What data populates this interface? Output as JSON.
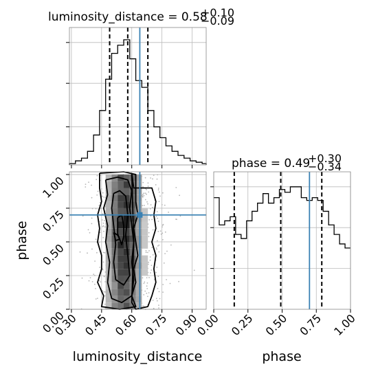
{
  "chart_data": {
    "type": "corner",
    "parameters": [
      "luminosity_distance",
      "phase"
    ],
    "truth": {
      "luminosity_distance": 0.64,
      "phase": 0.7
    },
    "panels": [
      {
        "name": "luminosity_distance-marginal",
        "type": "histogram",
        "title_main": "luminosity_distance = 0.58",
        "title_plus": "+0.10",
        "title_minus": "−0.09",
        "xlim": [
          0.29,
          0.97
        ],
        "ylim": [
          0,
          1
        ],
        "grid": true,
        "bins": [
          0.29,
          0.32,
          0.35,
          0.38,
          0.41,
          0.44,
          0.47,
          0.5,
          0.53,
          0.56,
          0.59,
          0.62,
          0.65,
          0.68,
          0.71,
          0.74,
          0.77,
          0.8,
          0.83,
          0.86,
          0.89,
          0.92,
          0.95,
          0.97
        ],
        "counts": [
          0.01,
          0.03,
          0.05,
          0.1,
          0.22,
          0.4,
          0.63,
          0.82,
          0.88,
          0.92,
          0.78,
          0.62,
          0.57,
          0.4,
          0.28,
          0.2,
          0.14,
          0.1,
          0.07,
          0.05,
          0.03,
          0.02,
          0.01
        ],
        "quantiles": [
          0.49,
          0.58,
          0.68
        ]
      },
      {
        "name": "luminosity_distance-phase-2d",
        "type": "2d-histogram",
        "xlim": [
          0.29,
          0.97
        ],
        "ylim": [
          0.0,
          1.02
        ],
        "grid": true,
        "contours": [
          {
            "x": [
              0.44,
              0.44,
              0.45,
              0.43,
              0.44,
              0.43,
              0.45,
              0.45,
              0.43,
              0.46,
              0.45,
              0.54,
              0.62,
              0.6,
              0.62,
              0.61,
              0.63,
              0.62,
              0.61,
              0.63,
              0.62,
              0.62,
              0.56,
              0.44
            ],
            "y": [
              1.01,
              0.9,
              0.8,
              0.7,
              0.6,
              0.5,
              0.4,
              0.3,
              0.2,
              0.1,
              0.02,
              0.0,
              0.02,
              0.1,
              0.2,
              0.3,
              0.4,
              0.5,
              0.6,
              0.7,
              0.8,
              1.0,
              1.02,
              1.01
            ]
          },
          {
            "x": [
              0.47,
              0.48,
              0.46,
              0.48,
              0.47,
              0.49,
              0.48,
              0.5,
              0.55,
              0.6,
              0.61,
              0.6,
              0.61,
              0.6,
              0.59,
              0.6,
              0.58,
              0.53,
              0.47
            ],
            "y": [
              0.96,
              0.85,
              0.75,
              0.62,
              0.5,
              0.35,
              0.2,
              0.08,
              0.05,
              0.1,
              0.22,
              0.35,
              0.5,
              0.62,
              0.75,
              0.88,
              0.96,
              0.98,
              0.96
            ]
          },
          {
            "x": [
              0.51,
              0.5,
              0.51,
              0.52,
              0.51,
              0.52,
              0.56,
              0.59,
              0.58,
              0.57,
              0.58,
              0.57,
              0.54,
              0.51
            ],
            "y": [
              0.86,
              0.75,
              0.62,
              0.48,
              0.35,
              0.22,
              0.18,
              0.25,
              0.4,
              0.55,
              0.7,
              0.84,
              0.88,
              0.86
            ]
          },
          {
            "x": [
              0.53,
              0.53,
              0.55,
              0.56,
              0.56,
              0.55,
              0.53
            ],
            "y": [
              0.68,
              0.56,
              0.48,
              0.54,
              0.62,
              0.7,
              0.68
            ]
          },
          {
            "x": [
              0.6,
              0.61,
              0.7,
              0.72,
              0.71,
              0.72,
              0.7,
              0.72,
              0.71,
              0.72,
              0.7,
              0.68,
              0.62,
              0.6,
              0.61,
              0.6
            ],
            "y": [
              1.01,
              0.9,
              0.9,
              0.8,
              0.7,
              0.6,
              0.5,
              0.4,
              0.3,
              0.2,
              0.1,
              0.02,
              0.0,
              0.05,
              0.5,
              1.01
            ]
          },
          {
            "x": [
              0.51,
              0.53,
              0.54,
              0.52,
              0.51
            ],
            "y": [
              0.57,
              0.55,
              0.52,
              0.51,
              0.57
            ]
          }
        ]
      },
      {
        "name": "phase-marginal",
        "type": "histogram",
        "title_main": "phase = 0.49",
        "title_plus": "+0.30",
        "title_minus": "−0.34",
        "xlim": [
          0.0,
          1.0
        ],
        "ylim": [
          0,
          1
        ],
        "grid": true,
        "bins": [
          0.0,
          0.04,
          0.08,
          0.12,
          0.16,
          0.2,
          0.24,
          0.28,
          0.32,
          0.36,
          0.4,
          0.44,
          0.48,
          0.52,
          0.56,
          0.6,
          0.64,
          0.68,
          0.72,
          0.76,
          0.8,
          0.84,
          0.88,
          0.92,
          0.96,
          1.0
        ],
        "counts": [
          0.82,
          0.62,
          0.65,
          0.68,
          0.55,
          0.52,
          0.65,
          0.72,
          0.78,
          0.85,
          0.78,
          0.82,
          0.88,
          0.86,
          0.9,
          0.9,
          0.82,
          0.8,
          0.82,
          0.8,
          0.72,
          0.62,
          0.55,
          0.48,
          0.45
        ]
      }
    ],
    "axes": {
      "x_ticks_ld": [
        "0.30",
        "0.45",
        "0.60",
        "0.75",
        "0.90"
      ],
      "y_ticks_phase": [
        "0.00",
        "0.25",
        "0.50",
        "0.75",
        "1.00"
      ],
      "x_ticks_phase": [
        "0.00",
        "0.25",
        "0.50",
        "0.75",
        "1.00"
      ],
      "xlabel_left": "luminosity_distance",
      "xlabel_right": "phase",
      "ylabel": "phase"
    },
    "colors": {
      "truth": "#3b82b4",
      "hist": "#000000",
      "grid": "#bbbbbb"
    }
  }
}
